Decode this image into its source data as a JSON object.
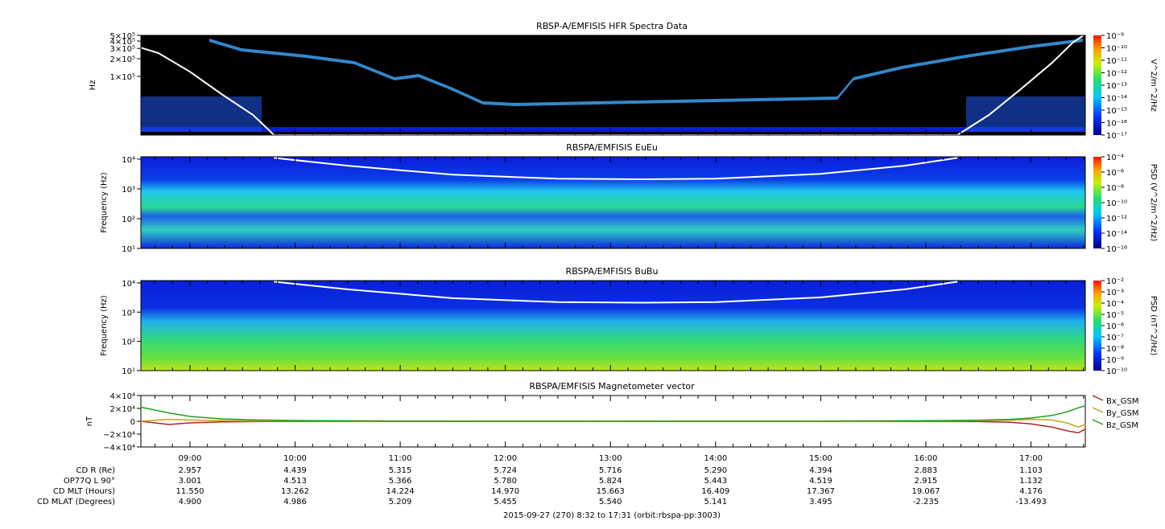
{
  "chart_data": [
    {
      "type": "heatmap",
      "title": "RBSP-A/EMFISIS  HFR Spectra Data",
      "ylabel": "Hz",
      "yscale": "log",
      "ylim": [
        10000,
        500000
      ],
      "ytick_labels": [
        "5×10⁵",
        "4×10⁵",
        "3×10⁵",
        "2×10⁵",
        "1×10⁵"
      ],
      "ytick_values": [
        500000,
        400000,
        300000,
        200000,
        100000
      ],
      "colorbar_label": "V^2/m^2/Hz",
      "colorbar_ticks": [
        "10⁻⁹",
        "10⁻¹⁰",
        "10⁻¹¹",
        "10⁻¹²",
        "10⁻¹³",
        "10⁻¹⁴",
        "10⁻¹⁵",
        "10⁻¹⁶",
        "10⁻¹⁷"
      ],
      "colorbar_range": [
        1e-17,
        1e-09
      ],
      "overlay_curve": {
        "color": "#ffffff",
        "x_hours": [
          8.53,
          8.7,
          9.0,
          9.3,
          9.6,
          9.8,
          16.3,
          16.6,
          16.9,
          17.2,
          17.4,
          17.5
        ],
        "y_hz": [
          310000,
          250000,
          120000,
          50000,
          22000,
          10000,
          10000,
          22000,
          60000,
          170000,
          380000,
          500000
        ]
      }
    },
    {
      "type": "heatmap",
      "title": "RBSPA/EMFISIS  EuEu",
      "ylabel": "Frequency (Hz)",
      "yscale": "log",
      "ylim": [
        10,
        12000
      ],
      "ytick_labels": [
        "10⁴",
        "10³",
        "10²",
        "10¹"
      ],
      "ytick_values": [
        10000,
        1000,
        100,
        10
      ],
      "colorbar_label": "PSD (V^2/m^2/Hz)",
      "colorbar_ticks": [
        "10⁻⁴",
        "10⁻⁶",
        "10⁻⁸",
        "10⁻¹⁰",
        "10⁻¹²",
        "10⁻¹⁴",
        "10⁻¹⁶"
      ],
      "colorbar_range": [
        1e-16,
        0.0001
      ],
      "overlay_curve": {
        "color": "#ffffff",
        "x_hours": [
          9.8,
          10.5,
          11.5,
          12.5,
          13.3,
          14.0,
          15.0,
          15.8,
          16.3
        ],
        "y_hz": [
          11000,
          6000,
          3000,
          2200,
          2100,
          2200,
          3200,
          6000,
          11000
        ]
      }
    },
    {
      "type": "heatmap",
      "title": "RBSPA/EMFISIS  BuBu",
      "ylabel": "Frequency (Hz)",
      "yscale": "log",
      "ylim": [
        10,
        12000
      ],
      "ytick_labels": [
        "10⁴",
        "10³",
        "10²",
        "10¹"
      ],
      "ytick_values": [
        10000,
        1000,
        100,
        10
      ],
      "colorbar_label": "PSD (nT^2/Hz)",
      "colorbar_ticks": [
        "10⁻²",
        "10⁻³",
        "10⁻⁴",
        "10⁻⁵",
        "10⁻⁶",
        "10⁻⁷",
        "10⁻⁸",
        "10⁻⁹",
        "10⁻¹⁰"
      ],
      "colorbar_range": [
        1e-10,
        0.01
      ],
      "overlay_curve": {
        "color": "#ffffff",
        "x_hours": [
          9.8,
          10.5,
          11.5,
          12.5,
          13.3,
          14.0,
          15.0,
          15.8,
          16.3
        ],
        "y_hz": [
          11000,
          6000,
          3000,
          2200,
          2100,
          2200,
          3200,
          6000,
          11000
        ]
      }
    },
    {
      "type": "line",
      "title": "RBSPA/EMFISIS  Magnetometer vector",
      "ylabel": "nT",
      "ylim": [
        -40000,
        40000
      ],
      "ytick_labels": [
        "4×10⁴",
        "2×10⁴",
        "0",
        "−2×10⁴",
        "−4×10⁴"
      ],
      "ytick_values": [
        40000,
        20000,
        0,
        -20000,
        -40000
      ],
      "x_hours": [
        8.53,
        8.8,
        9.0,
        9.3,
        9.6,
        10.0,
        11.0,
        12.0,
        13.0,
        14.0,
        15.0,
        16.0,
        16.5,
        16.8,
        17.0,
        17.2,
        17.35,
        17.45,
        17.52
      ],
      "series": [
        {
          "name": "Bx_GSM",
          "color": "#b22222",
          "values": [
            0,
            -5000,
            -2500,
            -1000,
            -500,
            -300,
            -100,
            0,
            0,
            0,
            0,
            -200,
            -500,
            -1500,
            -4000,
            -9000,
            -15000,
            -18000,
            -12000
          ]
        },
        {
          "name": "By_GSM",
          "color": "#c8a020",
          "values": [
            0,
            3000,
            2000,
            900,
            500,
            200,
            0,
            0,
            0,
            0,
            0,
            300,
            700,
            1500,
            3000,
            2000,
            -3000,
            -9000,
            -5000
          ]
        },
        {
          "name": "Bz_GSM",
          "color": "#22a022",
          "values": [
            22000,
            13000,
            7500,
            3800,
            2200,
            1200,
            400,
            100,
            0,
            100,
            400,
            900,
            1800,
            3000,
            5000,
            9000,
            15000,
            21000,
            24000
          ]
        }
      ]
    }
  ],
  "time_axis": {
    "start_hours": 8.5333,
    "end_hours": 17.5167,
    "tick_labels": [
      "09:00",
      "10:00",
      "11:00",
      "12:00",
      "13:00",
      "14:00",
      "15:00",
      "16:00",
      "17:00"
    ],
    "tick_hours": [
      9,
      10,
      11,
      12,
      13,
      14,
      15,
      16,
      17
    ]
  },
  "ephemeris": [
    {
      "label": "CD R (Re)",
      "values": [
        "2.957",
        "4.439",
        "5.315",
        "5.724",
        "5.716",
        "5.290",
        "4.394",
        "2.883",
        "1.103"
      ]
    },
    {
      "label": "OP77Q L 90°",
      "values": [
        "3.001",
        "4.513",
        "5.366",
        "5.780",
        "5.824",
        "5.443",
        "4.519",
        "2.915",
        "1.132"
      ]
    },
    {
      "label": "CD MLT (Hours)",
      "values": [
        "11.550",
        "13.262",
        "14.224",
        "14.970",
        "15.663",
        "16.409",
        "17.367",
        "19.067",
        "4.176"
      ]
    },
    {
      "label": "CD MLAT (Degrees)",
      "values": [
        "4.900",
        "4.986",
        "5.209",
        "5.455",
        "5.540",
        "5.141",
        "3.495",
        "-2.235",
        "-13.493"
      ]
    }
  ],
  "footer": "2015-09-27 (270) 8:32 to 17:31 (orbit:rbspa-pp:3003)",
  "colors": {
    "background_dark": "#000000",
    "spectrogram_blue": "#0a2ee0",
    "spectrogram_green": "#30e070"
  }
}
